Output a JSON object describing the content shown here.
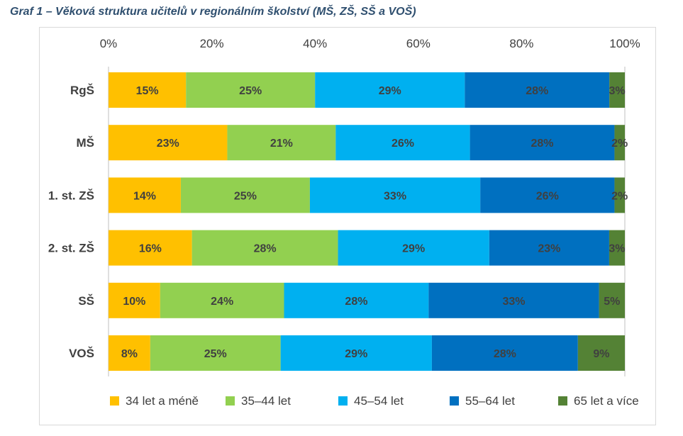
{
  "title": "Graf 1 – Věková struktura učitelů v regionálním školství (MŠ, ZŠ, SŠ a VOŠ)",
  "colors": {
    "title": "#2f4f6f",
    "text": "#404040",
    "axis": "#bfbfbf",
    "series": [
      "#ffc000",
      "#92d050",
      "#00b0f0",
      "#0070c0",
      "#548235"
    ]
  },
  "chart_data": {
    "type": "bar",
    "orientation": "horizontal",
    "stacked": true,
    "percent": true,
    "categories": [
      "RgŠ",
      "MŠ",
      "1. st. ZŠ",
      "2. st. ZŠ",
      "SŠ",
      "VOŠ"
    ],
    "series": [
      {
        "name": "34 let a méně",
        "values": [
          15,
          23,
          14,
          16,
          10,
          8
        ],
        "labels": [
          "15%",
          "23%",
          "14%",
          "16%",
          "10%",
          "8%"
        ]
      },
      {
        "name": "35–44 let",
        "values": [
          25,
          21,
          25,
          28,
          24,
          25
        ],
        "labels": [
          "25%",
          "21%",
          "25%",
          "28%",
          "24%",
          "25%"
        ]
      },
      {
        "name": "45–54 let",
        "values": [
          29,
          26,
          33,
          29,
          28,
          29
        ],
        "labels": [
          "29%",
          "26%",
          "33%",
          "29%",
          "28%",
          "29%"
        ]
      },
      {
        "name": "55–64 let",
        "values": [
          28,
          28,
          26,
          23,
          33,
          28
        ],
        "labels": [
          "28%",
          "28%",
          "26%",
          "23%",
          "33%",
          "28%"
        ]
      },
      {
        "name": "65 let a více",
        "values": [
          3,
          2,
          2,
          3,
          5,
          9
        ],
        "labels": [
          "3%",
          "2%",
          "2%",
          "3%",
          "5%",
          "9%"
        ]
      }
    ],
    "x_ticks": [
      "0%",
      "20%",
      "40%",
      "60%",
      "80%",
      "100%"
    ],
    "xlim": [
      0,
      100
    ],
    "legend_position": "bottom",
    "grid": false,
    "title": "Graf 1 – Věková struktura učitelů v regionálním školství (MŠ, ZŠ, SŠ a VOŠ)",
    "xlabel": "",
    "ylabel": ""
  }
}
